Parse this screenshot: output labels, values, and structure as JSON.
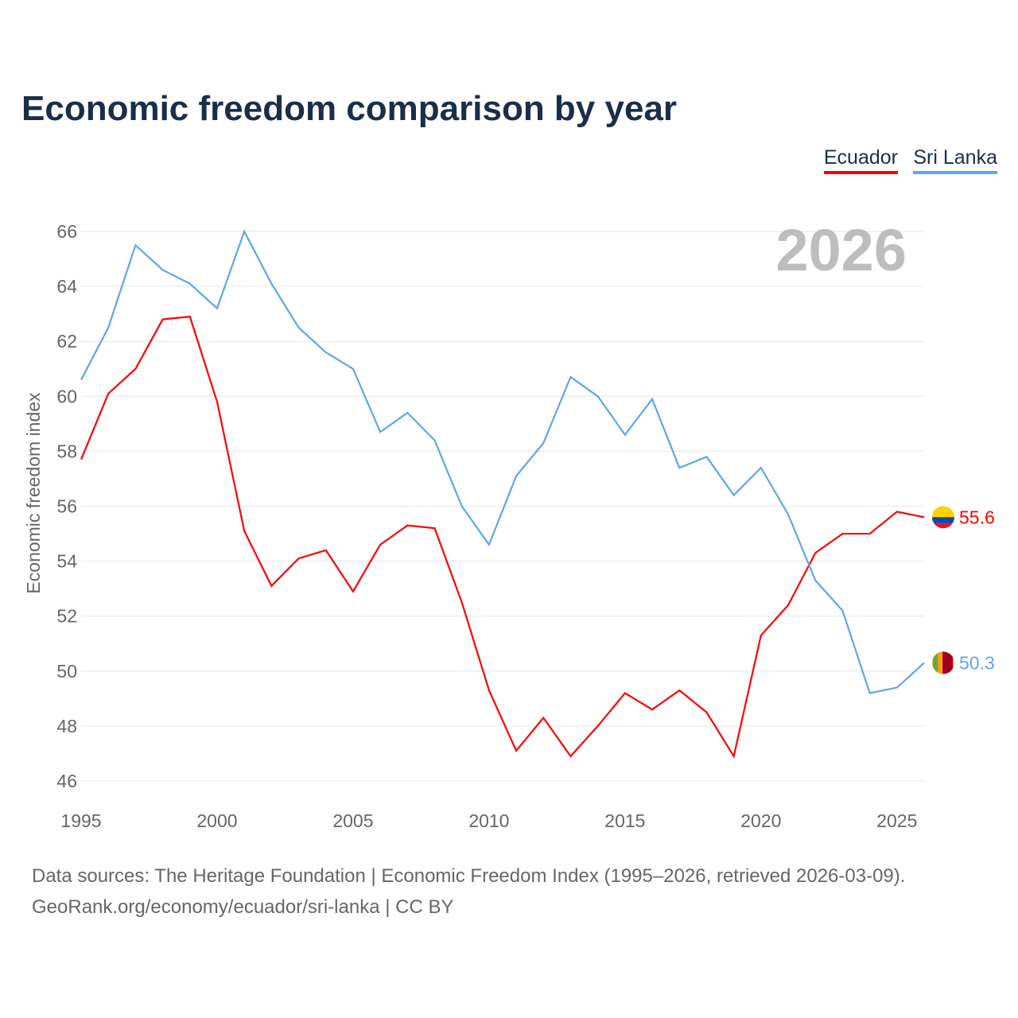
{
  "chart_data": {
    "type": "line",
    "title": "Economic freedom comparison by year",
    "ylabel": "Economic freedom index",
    "xlabel": "",
    "ylim": [
      46,
      66
    ],
    "xlim": [
      1995,
      2026
    ],
    "yticks": [
      46,
      48,
      50,
      52,
      54,
      56,
      58,
      60,
      62,
      64,
      66
    ],
    "xticks": [
      1995,
      2000,
      2005,
      2010,
      2015,
      2020,
      2025
    ],
    "grid": true,
    "legend": "top-right",
    "year_label": "2026",
    "x": [
      1995,
      1996,
      1997,
      1998,
      1999,
      2000,
      2001,
      2002,
      2003,
      2004,
      2005,
      2006,
      2007,
      2008,
      2009,
      2010,
      2011,
      2012,
      2013,
      2014,
      2015,
      2016,
      2017,
      2018,
      2019,
      2020,
      2021,
      2022,
      2023,
      2024,
      2025,
      2026
    ],
    "series": [
      {
        "name": "Ecuador",
        "color": "#ff0000",
        "end_label": "55.6",
        "flag": "ecuador-flag",
        "values": [
          57.7,
          60.1,
          61.0,
          62.8,
          62.9,
          59.8,
          55.1,
          53.1,
          54.1,
          54.4,
          52.9,
          54.6,
          55.3,
          55.2,
          52.5,
          49.3,
          47.1,
          48.3,
          46.9,
          48.0,
          49.2,
          48.6,
          49.3,
          48.5,
          46.9,
          51.3,
          52.4,
          54.3,
          55.0,
          55.0,
          55.8,
          55.6
        ]
      },
      {
        "name": "Sri Lanka",
        "color": "#5ea6e8",
        "end_label": "50.3",
        "flag": "sri-lanka-flag",
        "values": [
          60.6,
          62.5,
          65.5,
          64.6,
          64.1,
          63.2,
          66.0,
          64.1,
          62.5,
          61.6,
          61.0,
          58.7,
          59.4,
          58.4,
          56.0,
          54.6,
          57.1,
          58.3,
          60.7,
          60.0,
          58.6,
          59.9,
          57.4,
          57.8,
          56.4,
          57.4,
          55.7,
          53.3,
          52.2,
          49.2,
          49.4,
          50.3
        ]
      }
    ]
  },
  "footer": {
    "line1": "Data sources: The Heritage Foundation | Economic Freedom Index (1995–2026, retrieved 2026-03-09).",
    "line2": "GeoRank.org/economy/ecuador/sri-lanka | CC BY"
  }
}
